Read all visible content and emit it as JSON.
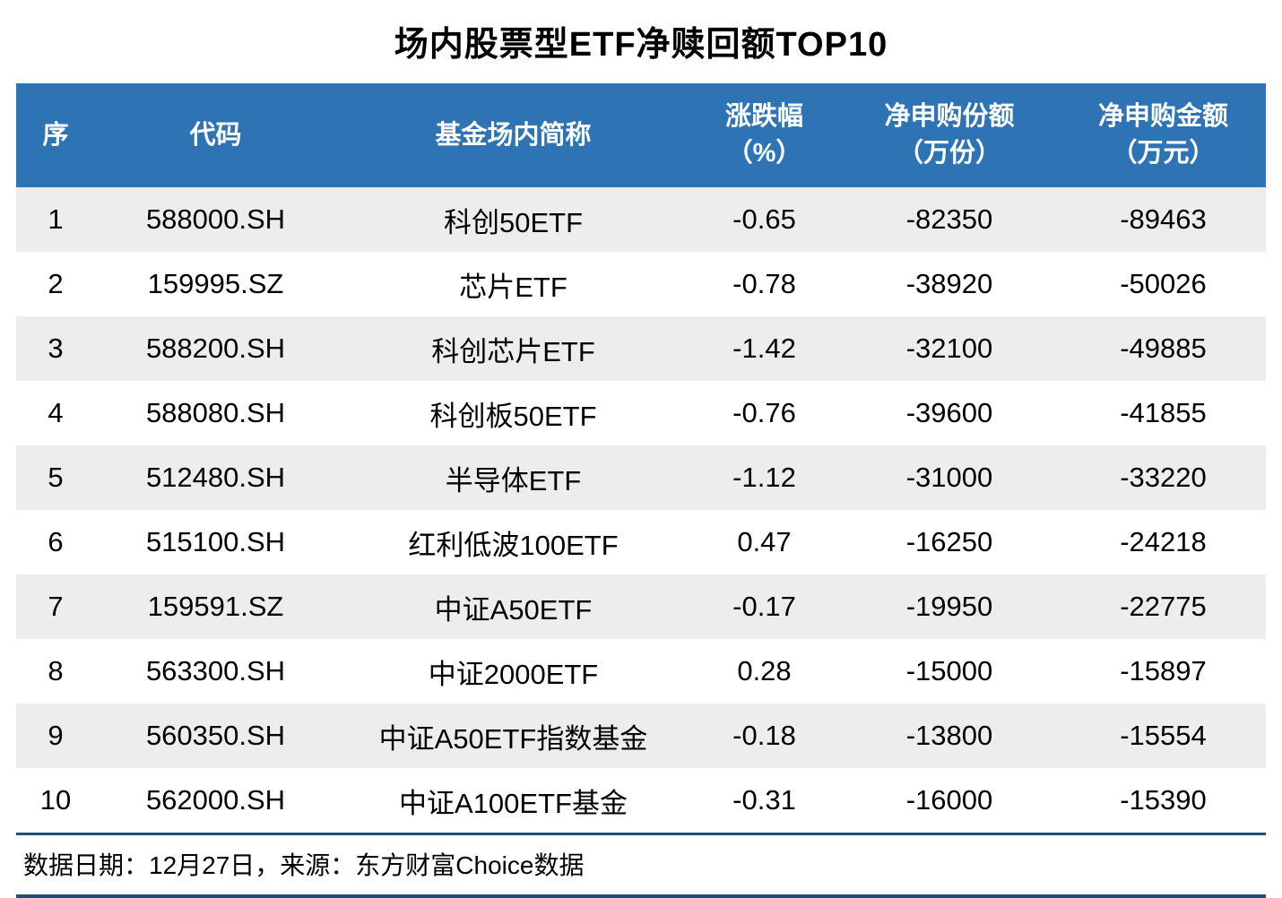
{
  "title": "场内股票型ETF净赎回额TOP10",
  "colors": {
    "header_bg": "#2E74B5",
    "header_text": "#FFFFFF",
    "stripe_bg": "#EDEDED",
    "divider": "#1F4E79"
  },
  "headers": {
    "seq": "序",
    "code": "代码",
    "name": "基金场内简称",
    "change_line1": "涨跌幅",
    "change_line2": "（%）",
    "shares_line1": "净申购份额",
    "shares_line2": "（万份）",
    "amount_line1": "净申购金额",
    "amount_line2": "（万元）"
  },
  "footer": {
    "text": "数据日期：12月27日，来源：东方财富Choice数据"
  },
  "chart_data": {
    "type": "table",
    "title": "场内股票型ETF净赎回额TOP10",
    "columns": [
      "序",
      "代码",
      "基金场内简称",
      "涨跌幅（%）",
      "净申购份额（万份）",
      "净申购金额（万元）"
    ],
    "rows": [
      {
        "num": "1",
        "code": "588000.SH",
        "name": "科创50ETF",
        "change": "-0.65",
        "shares": "-82350",
        "amount": "-89463"
      },
      {
        "num": "2",
        "code": "159995.SZ",
        "name": "芯片ETF",
        "change": "-0.78",
        "shares": "-38920",
        "amount": "-50026"
      },
      {
        "num": "3",
        "code": "588200.SH",
        "name": "科创芯片ETF",
        "change": "-1.42",
        "shares": "-32100",
        "amount": "-49885"
      },
      {
        "num": "4",
        "code": "588080.SH",
        "name": "科创板50ETF",
        "change": "-0.76",
        "shares": "-39600",
        "amount": "-41855"
      },
      {
        "num": "5",
        "code": "512480.SH",
        "name": "半导体ETF",
        "change": "-1.12",
        "shares": "-31000",
        "amount": "-33220"
      },
      {
        "num": "6",
        "code": "515100.SH",
        "name": "红利低波100ETF",
        "change": "0.47",
        "shares": "-16250",
        "amount": "-24218"
      },
      {
        "num": "7",
        "code": "159591.SZ",
        "name": "中证A50ETF",
        "change": "-0.17",
        "shares": "-19950",
        "amount": "-22775"
      },
      {
        "num": "8",
        "code": "563300.SH",
        "name": "中证2000ETF",
        "change": "0.28",
        "shares": "-15000",
        "amount": "-15897"
      },
      {
        "num": "9",
        "code": "560350.SH",
        "name": "中证A50ETF指数基金",
        "change": "-0.18",
        "shares": "-13800",
        "amount": "-15554"
      },
      {
        "num": "10",
        "code": "562000.SH",
        "name": "中证A100ETF基金",
        "change": "-0.31",
        "shares": "-16000",
        "amount": "-15390"
      }
    ]
  }
}
